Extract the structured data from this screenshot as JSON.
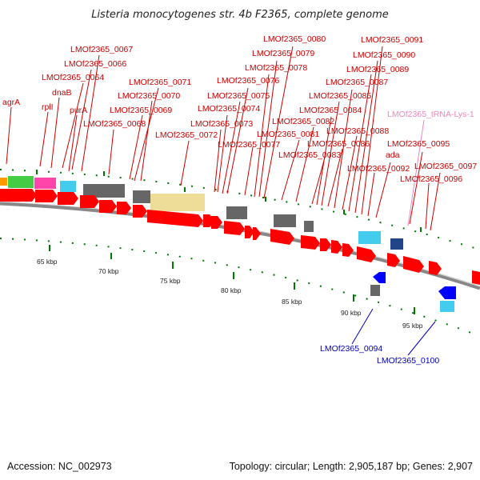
{
  "title": "Listeria monocytogenes str. 4b F2365, complete genome",
  "accession_text": "Accession: NC_002973",
  "summary_text": "Topology: circular; Length: 2,905,187 bp; Genes: 2,907",
  "colors": {
    "forward_label": "#cc0000",
    "reverse_label": "#0000bb",
    "trna_label": "#ee88bb",
    "cds_forward": "#ff0000",
    "cds_reverse": "#0000ff",
    "misc_gray": "#666666",
    "misc_cyan": "#44ccee",
    "misc_khaki": "#eedd99",
    "misc_green": "#44cc44",
    "misc_pink": "#ff44aa",
    "backbone": "#888888",
    "tick": "#007700"
  },
  "scale": {
    "unit": "kbp",
    "labels": [
      "65 kbp",
      "70 kbp",
      "75 kbp",
      "80 kbp",
      "85 kbp",
      "90 kbp",
      "95 kbp"
    ]
  },
  "labels_forward": [
    "agrA",
    "rplI",
    "dnaB",
    "purA",
    "LMOf2365_0064",
    "LMOf2365_0066",
    "LMOf2365_0067",
    "LMOf2365_0068",
    "LMOf2365_0069",
    "LMOf2365_0070",
    "LMOf2365_0071",
    "LMOf2365_0072",
    "LMOf2365_0073",
    "LMOf2365_0074",
    "LMOf2365_0075",
    "LMOf2365_0076",
    "LMOf2365_0077",
    "LMOf2365_0078",
    "LMOf2365_0079",
    "LMOf2365_0080",
    "LMOf2365_0081",
    "LMOf2365_0082",
    "LMOf2365_0083",
    "LMOf2365_0084",
    "LMOf2365_0085",
    "LMOf2365_0086",
    "LMOf2365_0087",
    "LMOf2365_0088",
    "LMOf2365_0089",
    "LMOf2365_0090",
    "LMOf2365_0091",
    "LMOf2365_0092",
    "ada",
    "LMOf2365_0095",
    "LMOf2365_0096",
    "LMOf2365_0097"
  ],
  "labels_trna": [
    "LMOf2365_tRNA-Lys-1"
  ],
  "labels_reverse": [
    "LMOf2365_0094",
    "LMOf2365_0100"
  ]
}
